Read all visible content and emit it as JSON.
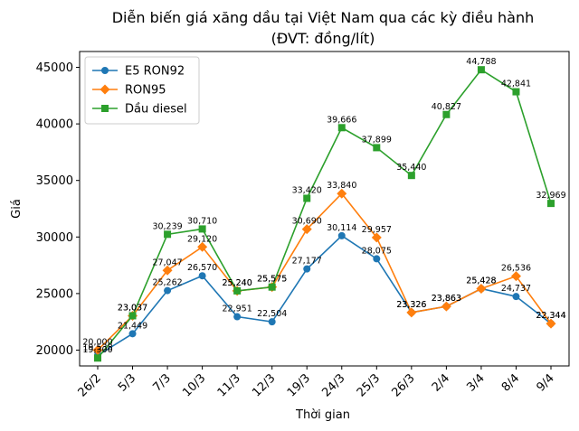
{
  "chart_data": {
    "type": "line",
    "title": "Diễn biến giá xăng dầu tại Việt Nam qua các kỳ điều hành",
    "subtitle": "(ĐVT: đồng/lít)",
    "xlabel": "Thời gian",
    "ylabel": "Giá",
    "categories": [
      "26/2",
      "5/3",
      "7/3",
      "10/3",
      "11/3",
      "12/3",
      "19/3",
      "24/3",
      "25/3",
      "26/3",
      "2/4",
      "3/4",
      "8/4",
      "9/4"
    ],
    "ylim": [
      18600,
      46400
    ],
    "yticks": [
      20000,
      25000,
      30000,
      35000,
      40000,
      45000
    ],
    "grid": false,
    "legend_position": "top-left",
    "series": [
      {
        "name": "E5 RON92",
        "color": "#1f77b4",
        "marker": "circle",
        "values": [
          19538,
          21449,
          25262,
          26570,
          22951,
          22504,
          27177,
          30114,
          28075,
          23326,
          23863,
          25428,
          24737,
          22344
        ],
        "labels": [
          "19,538",
          "21,449",
          "25,262",
          "26,570",
          "22,951",
          "22,504",
          "27,177",
          "30,114",
          "28,075",
          "23,326",
          "23,863",
          "25,428",
          "24,737",
          "22,344"
        ]
      },
      {
        "name": "RON95",
        "color": "#ff7f0e",
        "marker": "diamond",
        "values": [
          20000,
          23037,
          27047,
          29120,
          25240,
          25575,
          30690,
          33840,
          29957,
          23326,
          23863,
          25428,
          26536,
          22344
        ],
        "labels": [
          "20,000",
          "23,037",
          "27,047",
          "29,120",
          "25,240",
          "25,575",
          "30,690",
          "33,840",
          "29,957",
          "23,326",
          "23,863",
          "25,428",
          "26,536",
          "22,344"
        ]
      },
      {
        "name": "Dầu diesel",
        "color": "#2ca02c",
        "marker": "square",
        "values": [
          19300,
          23037,
          30239,
          30710,
          25240,
          25575,
          33420,
          39666,
          37899,
          35440,
          40827,
          44788,
          42841,
          32969
        ],
        "labels": [
          "19,300",
          "23,037",
          "30,239",
          "30,710",
          "25,240",
          "25,575",
          "33,420",
          "39,666",
          "37,899",
          "35,440",
          "40,827",
          "44,788",
          "42,841",
          "32,969"
        ]
      }
    ]
  }
}
